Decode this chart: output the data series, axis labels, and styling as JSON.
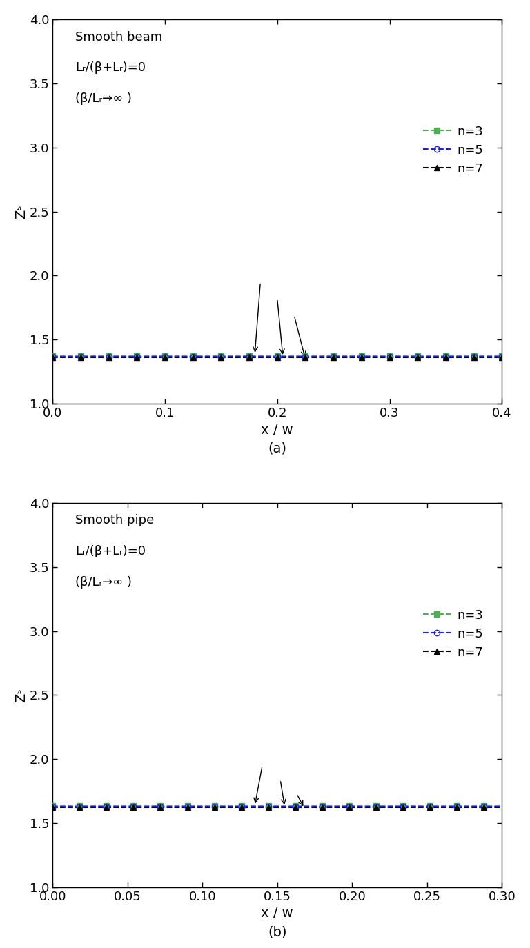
{
  "panel_a": {
    "title_line1": "Smooth beam",
    "title_line2": "Lᵣ/(β+Lᵣ)=0",
    "title_line3": "(β/Lᵣ→∞ )",
    "xlabel": "x / w",
    "ylabel": "Zˢ",
    "xlim": [
      0.0,
      0.4
    ],
    "ylim": [
      1.0,
      4.0
    ],
    "xticks": [
      0.0,
      0.1,
      0.2,
      0.3,
      0.4
    ],
    "yticks": [
      1.0,
      1.5,
      2.0,
      2.5,
      3.0,
      3.5,
      4.0
    ],
    "n3_value": 1.374,
    "n5_value": 1.367,
    "n7_value": 1.36,
    "label": "(a)"
  },
  "panel_b": {
    "title_line1": "Smooth pipe",
    "title_line2": "Lᵣ/(β+Lᵣ)=0",
    "title_line3": "(β/Lᵣ→∞ )",
    "xlabel": "x / w",
    "ylabel": "Zˢ",
    "xlim": [
      0.0,
      0.3
    ],
    "ylim": [
      1.0,
      4.0
    ],
    "xticks": [
      0.0,
      0.05,
      0.1,
      0.15,
      0.2,
      0.25,
      0.3
    ],
    "yticks": [
      1.0,
      1.5,
      2.0,
      2.5,
      3.0,
      3.5,
      4.0
    ],
    "n3_value": 1.633,
    "n5_value": 1.628,
    "n7_value": 1.624,
    "label": "(b)"
  },
  "n3_color": "#4caf50",
  "n5_color": "#1a1aff",
  "n7_color": "#000000",
  "bg_color": "#ffffff",
  "text_color": "#000000"
}
